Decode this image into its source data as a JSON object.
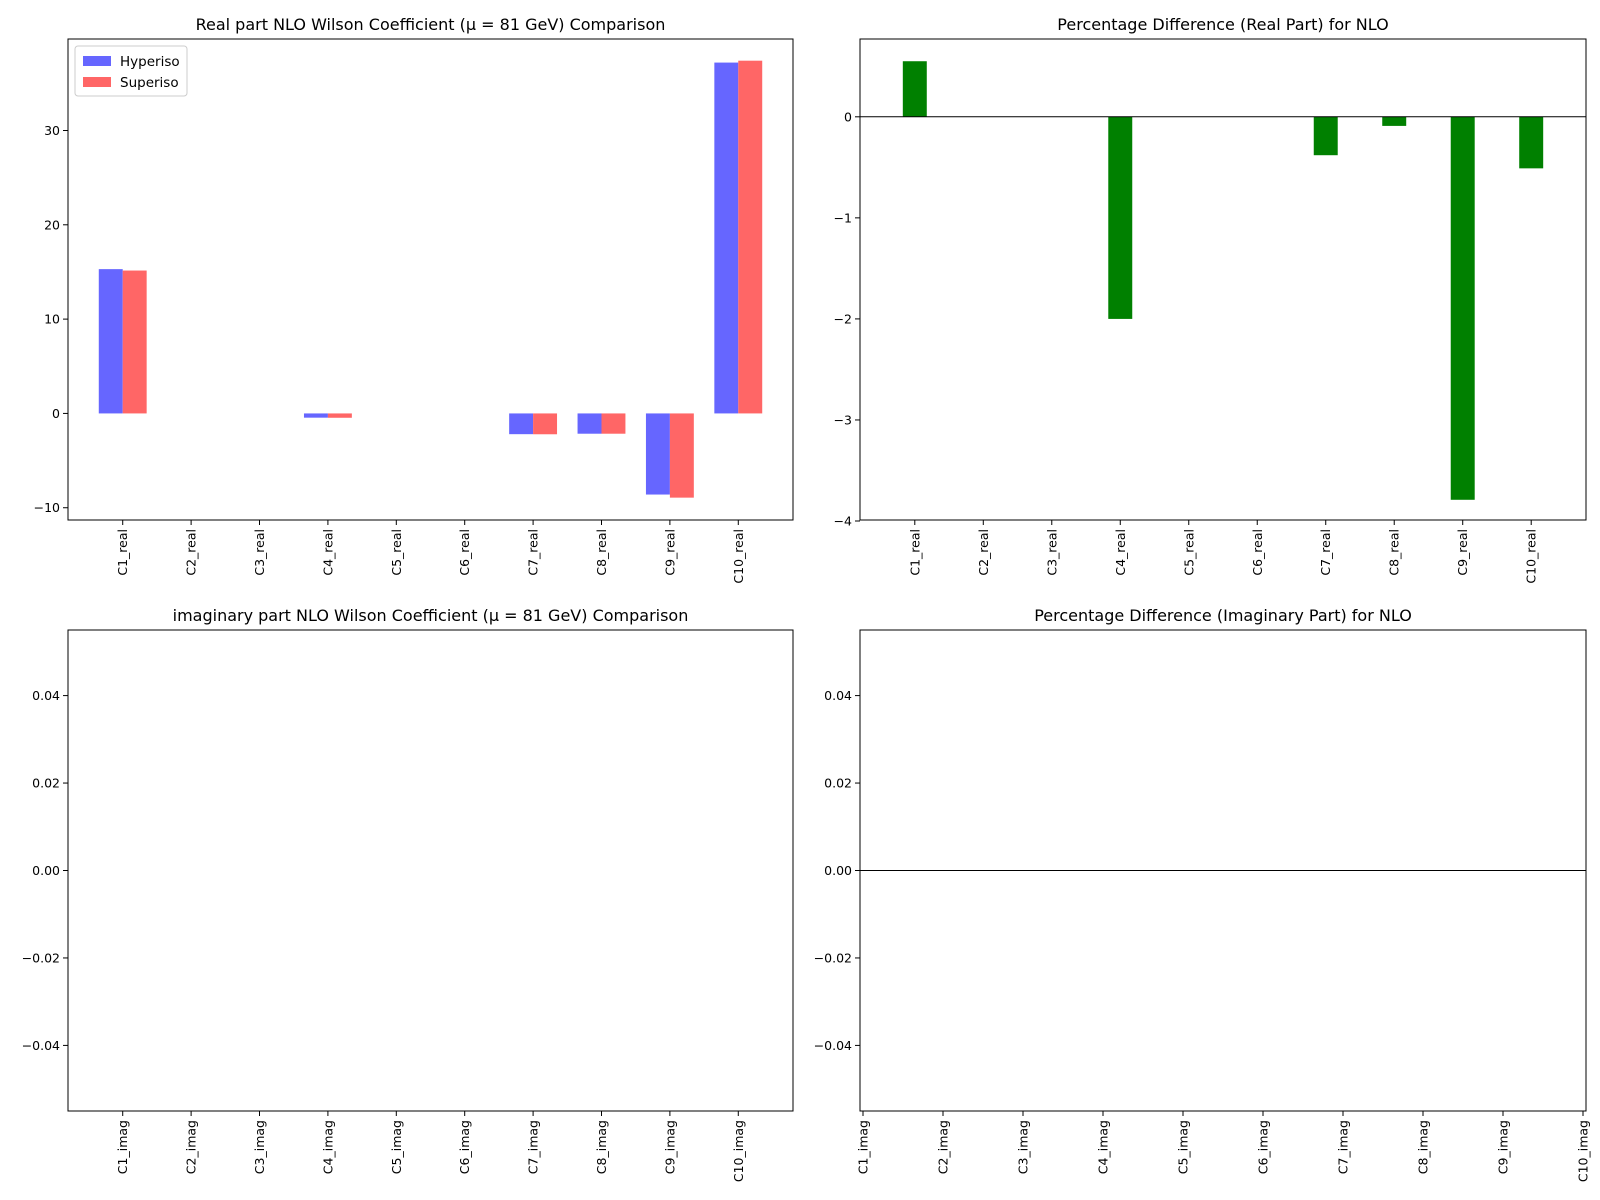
{
  "colors": {
    "hyperiso": "#6666ff",
    "superiso": "#ff6666",
    "diff": "#008000"
  },
  "chart_data": [
    {
      "type": "bar",
      "title": "Real part NLO Wilson Coefficient (μ = 81 GeV) Comparison",
      "categories": [
        "C1_real",
        "C2_real",
        "C3_real",
        "C4_real",
        "C5_real",
        "C6_real",
        "C7_real",
        "C8_real",
        "C9_real",
        "C10_real"
      ],
      "series": [
        {
          "name": "Hyperiso",
          "values": [
            15.3,
            0,
            0,
            -0.45,
            0,
            0,
            -2.2,
            -2.15,
            -8.6,
            37.2
          ]
        },
        {
          "name": "Superiso",
          "values": [
            15.15,
            0,
            0,
            -0.46,
            0,
            0,
            -2.21,
            -2.15,
            -8.93,
            37.4
          ]
        }
      ],
      "ylim": [
        -11.3,
        39.7
      ],
      "yticks": [
        -10,
        0,
        10,
        20,
        30
      ],
      "ytick_labels": [
        "−10",
        "0",
        "10",
        "20",
        "30"
      ],
      "legend": "top-left",
      "grid": false
    },
    {
      "type": "bar",
      "title": "Percentage Difference (Real Part) for NLO",
      "categories": [
        "C1_real",
        "C2_real",
        "C3_real",
        "C4_real",
        "C5_real",
        "C6_real",
        "C7_real",
        "C8_real",
        "C9_real",
        "C10_real"
      ],
      "series": [
        {
          "values": [
            0.55,
            0,
            0,
            -2.0,
            0,
            0,
            -0.38,
            -0.09,
            -3.79,
            -0.51
          ]
        }
      ],
      "ylim": [
        -3.99,
        0.77
      ],
      "yticks": [
        -4,
        -3,
        -2,
        -1,
        0
      ],
      "ytick_labels": [
        "−4",
        "−3",
        "−2",
        "−1",
        "0"
      ],
      "zero_line": true,
      "grid": false
    },
    {
      "type": "bar",
      "title": "imaginary part NLO Wilson Coefficient (μ = 81 GeV) Comparison",
      "categories": [
        "C1_imag",
        "C2_imag",
        "C3_imag",
        "C4_imag",
        "C5_imag",
        "C6_imag",
        "C7_imag",
        "C8_imag",
        "C9_imag",
        "C10_imag"
      ],
      "series": [
        {
          "name": "Hyperiso",
          "values": [
            0,
            0,
            0,
            0,
            0,
            0,
            0,
            0,
            0,
            0
          ]
        },
        {
          "name": "Superiso",
          "values": [
            0,
            0,
            0,
            0,
            0,
            0,
            0,
            0,
            0,
            0
          ]
        }
      ],
      "ylim": [
        -0.055,
        0.055
      ],
      "yticks": [
        -0.04,
        -0.02,
        0.0,
        0.02,
        0.04
      ],
      "ytick_labels": [
        "−0.04",
        "−0.02",
        "0.00",
        "0.02",
        "0.04"
      ],
      "grid": false
    },
    {
      "type": "bar",
      "title": "Percentage Difference (Imaginary Part) for NLO",
      "categories": [
        "C1_imag",
        "C2_imag",
        "C3_imag",
        "C4_imag",
        "C5_imag",
        "C6_imag",
        "C7_imag",
        "C8_imag",
        "C9_imag",
        "C10_imag"
      ],
      "series": [
        {
          "values": [
            0,
            0,
            0,
            0,
            0,
            0,
            0,
            0,
            0,
            0
          ]
        }
      ],
      "ylim": [
        -0.055,
        0.055
      ],
      "yticks": [
        -0.04,
        -0.02,
        0.0,
        0.02,
        0.04
      ],
      "ytick_labels": [
        "−0.04",
        "−0.02",
        "0.00",
        "0.02",
        "0.04"
      ],
      "zero_line": true,
      "grid": false
    }
  ]
}
